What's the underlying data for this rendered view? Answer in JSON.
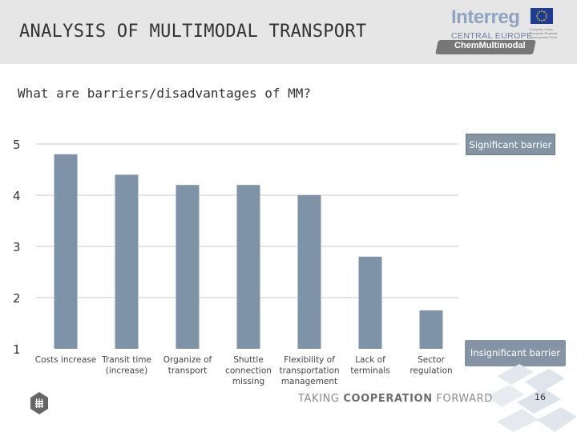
{
  "header": {
    "title": "ANALYSIS OF MULTIMODAL TRANSPORT",
    "logo_name": "Interreg",
    "logo_sub": "CENTRAL EUROPE",
    "logo_eu_text": "European Union European Regional Development Fund",
    "project_name": "ChemMultimodal"
  },
  "question": "What are barriers/disadvantages of MM?",
  "chart_data": {
    "type": "bar",
    "title": "",
    "xlabel": "",
    "ylabel": "",
    "ylim": [
      1,
      5
    ],
    "yticks": [
      "1",
      "2",
      "3",
      "4",
      "5"
    ],
    "gridlines": [
      5,
      4,
      3,
      2
    ],
    "categories": [
      "Costs increase",
      "Transit time (increase)",
      "Organize of transport",
      "Shuttle connection missing",
      "Flexibility of transportation management",
      "Lack of terminals",
      "Sector regulation"
    ],
    "category_lines": [
      [
        "Costs increase"
      ],
      [
        "Transit time",
        "(increase)"
      ],
      [
        "Organize of",
        "transport"
      ],
      [
        "Shuttle",
        "connection",
        "missing"
      ],
      [
        "Flexibility of",
        "transportation",
        "management"
      ],
      [
        "Lack of",
        "terminals"
      ],
      [
        "Sector",
        "regulation"
      ]
    ],
    "values": [
      4.8,
      4.4,
      4.2,
      4.2,
      4.0,
      2.8,
      1.75
    ],
    "bar_color": "#7f93a8",
    "annotations": {
      "top": "Significant barrier",
      "bottom": "Insignificant barrier"
    }
  },
  "footer": {
    "slogan_prefix": "TAKING ",
    "slogan_bold": "COOPERATION",
    "slogan_suffix": " FORWARD",
    "page_number": "16"
  },
  "colors": {
    "header_bg": "#e6e6e6",
    "accent": "#8594a5",
    "logo_blue": "#8fa3c4"
  }
}
